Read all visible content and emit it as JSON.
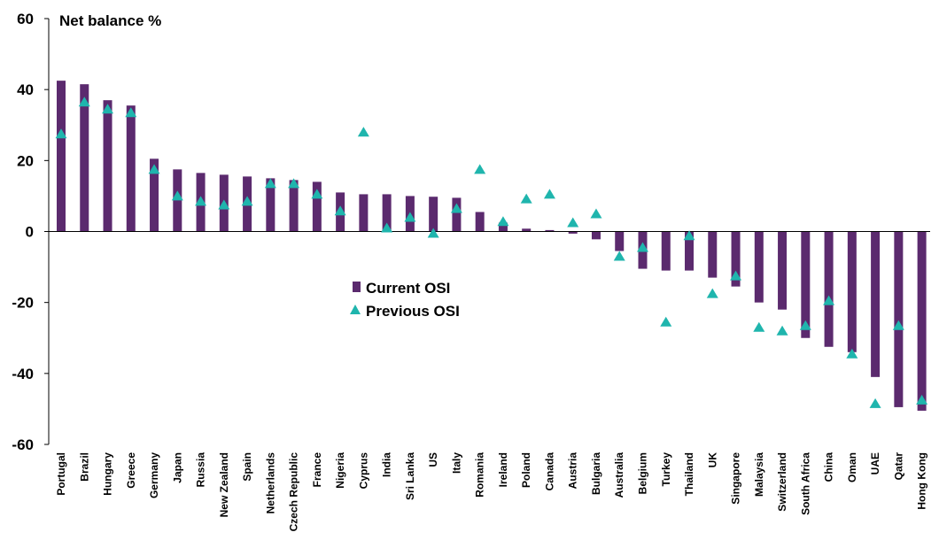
{
  "colors": {
    "bar": "#5b2a6e",
    "marker": "#1fb5ad",
    "axis": "#000000"
  },
  "chart_data": {
    "type": "bar",
    "ylabel": "Net balance %",
    "ylim": [
      -60,
      60
    ],
    "yticks": [
      -60,
      -40,
      -20,
      0,
      20,
      40,
      60
    ],
    "grid": false,
    "legend_position": "center",
    "categories": [
      "Portugal",
      "Brazil",
      "Hungary",
      "Greece",
      "Germany",
      "Japan",
      "Russia",
      "New Zealand",
      "Spain",
      "Netherlands",
      "Czech Republic",
      "France",
      "Nigeria",
      "Cyprus",
      "India",
      "Sri Lanka",
      "US",
      "Italy",
      "Romania",
      "Ireland",
      "Poland",
      "Canada",
      "Austria",
      "Bulgaria",
      "Australia",
      "Belgium",
      "Turkey",
      "Thailand",
      "UK",
      "Singapore",
      "Malaysia",
      "Switzerland",
      "South Africa",
      "China",
      "Oman",
      "UAE",
      "Qatar",
      "Hong Kong"
    ],
    "series": [
      {
        "name": "Current OSI",
        "type": "bar",
        "values": [
          42.5,
          41.5,
          37,
          35.5,
          20.5,
          17.5,
          16.5,
          16,
          15.5,
          15,
          14.5,
          14,
          11,
          10.5,
          10.5,
          10,
          9.8,
          9.5,
          5.5,
          2.5,
          0.8,
          0.4,
          -0.6,
          -2.2,
          -5.5,
          -10.5,
          -11,
          -11,
          -13,
          -15.5,
          -20,
          -22,
          -30,
          -32.5,
          -34,
          -41,
          -49.5,
          -50.5
        ]
      },
      {
        "name": "Previous OSI",
        "type": "scatter",
        "values": [
          27.5,
          36.5,
          34.5,
          33.5,
          17.5,
          10,
          8.5,
          7.5,
          8.5,
          13.5,
          13.5,
          10.5,
          5.8,
          28,
          1,
          4,
          -0.5,
          6.5,
          17.5,
          2.8,
          9.2,
          10.5,
          2.5,
          5,
          -7,
          -4.5,
          -25.5,
          -1.2,
          -17.5,
          -12.5,
          -27,
          -28,
          -26.5,
          -19.5,
          -34.5,
          -48.5,
          -26.5,
          -47.5
        ]
      }
    ]
  }
}
